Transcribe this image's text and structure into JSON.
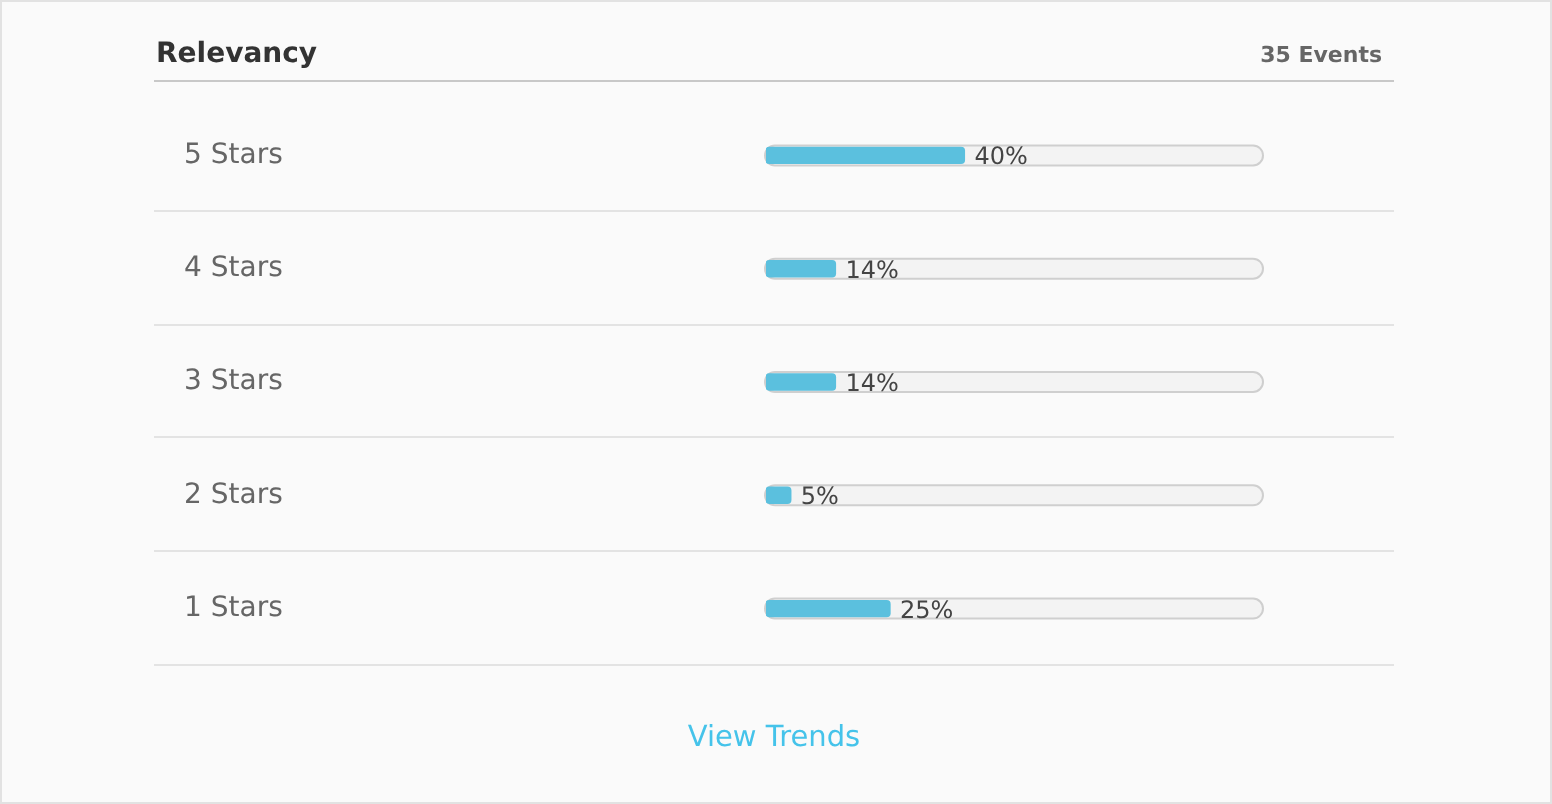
{
  "chart_data": {
    "type": "bar",
    "orientation": "horizontal",
    "title": "Relevancy",
    "subtitle": "35 Events",
    "categories": [
      "5 Stars",
      "4 Stars",
      "3 Stars",
      "2 Stars",
      "1 Stars"
    ],
    "values": [
      40,
      14,
      14,
      5,
      25
    ],
    "value_labels": [
      "40%",
      "14%",
      "14%",
      "5%",
      "25%"
    ],
    "color": "#5bc0de",
    "xlim": [
      0,
      100
    ],
    "grid": "y",
    "tick_labels": "y",
    "annotations": [
      "View Trends"
    ]
  }
}
